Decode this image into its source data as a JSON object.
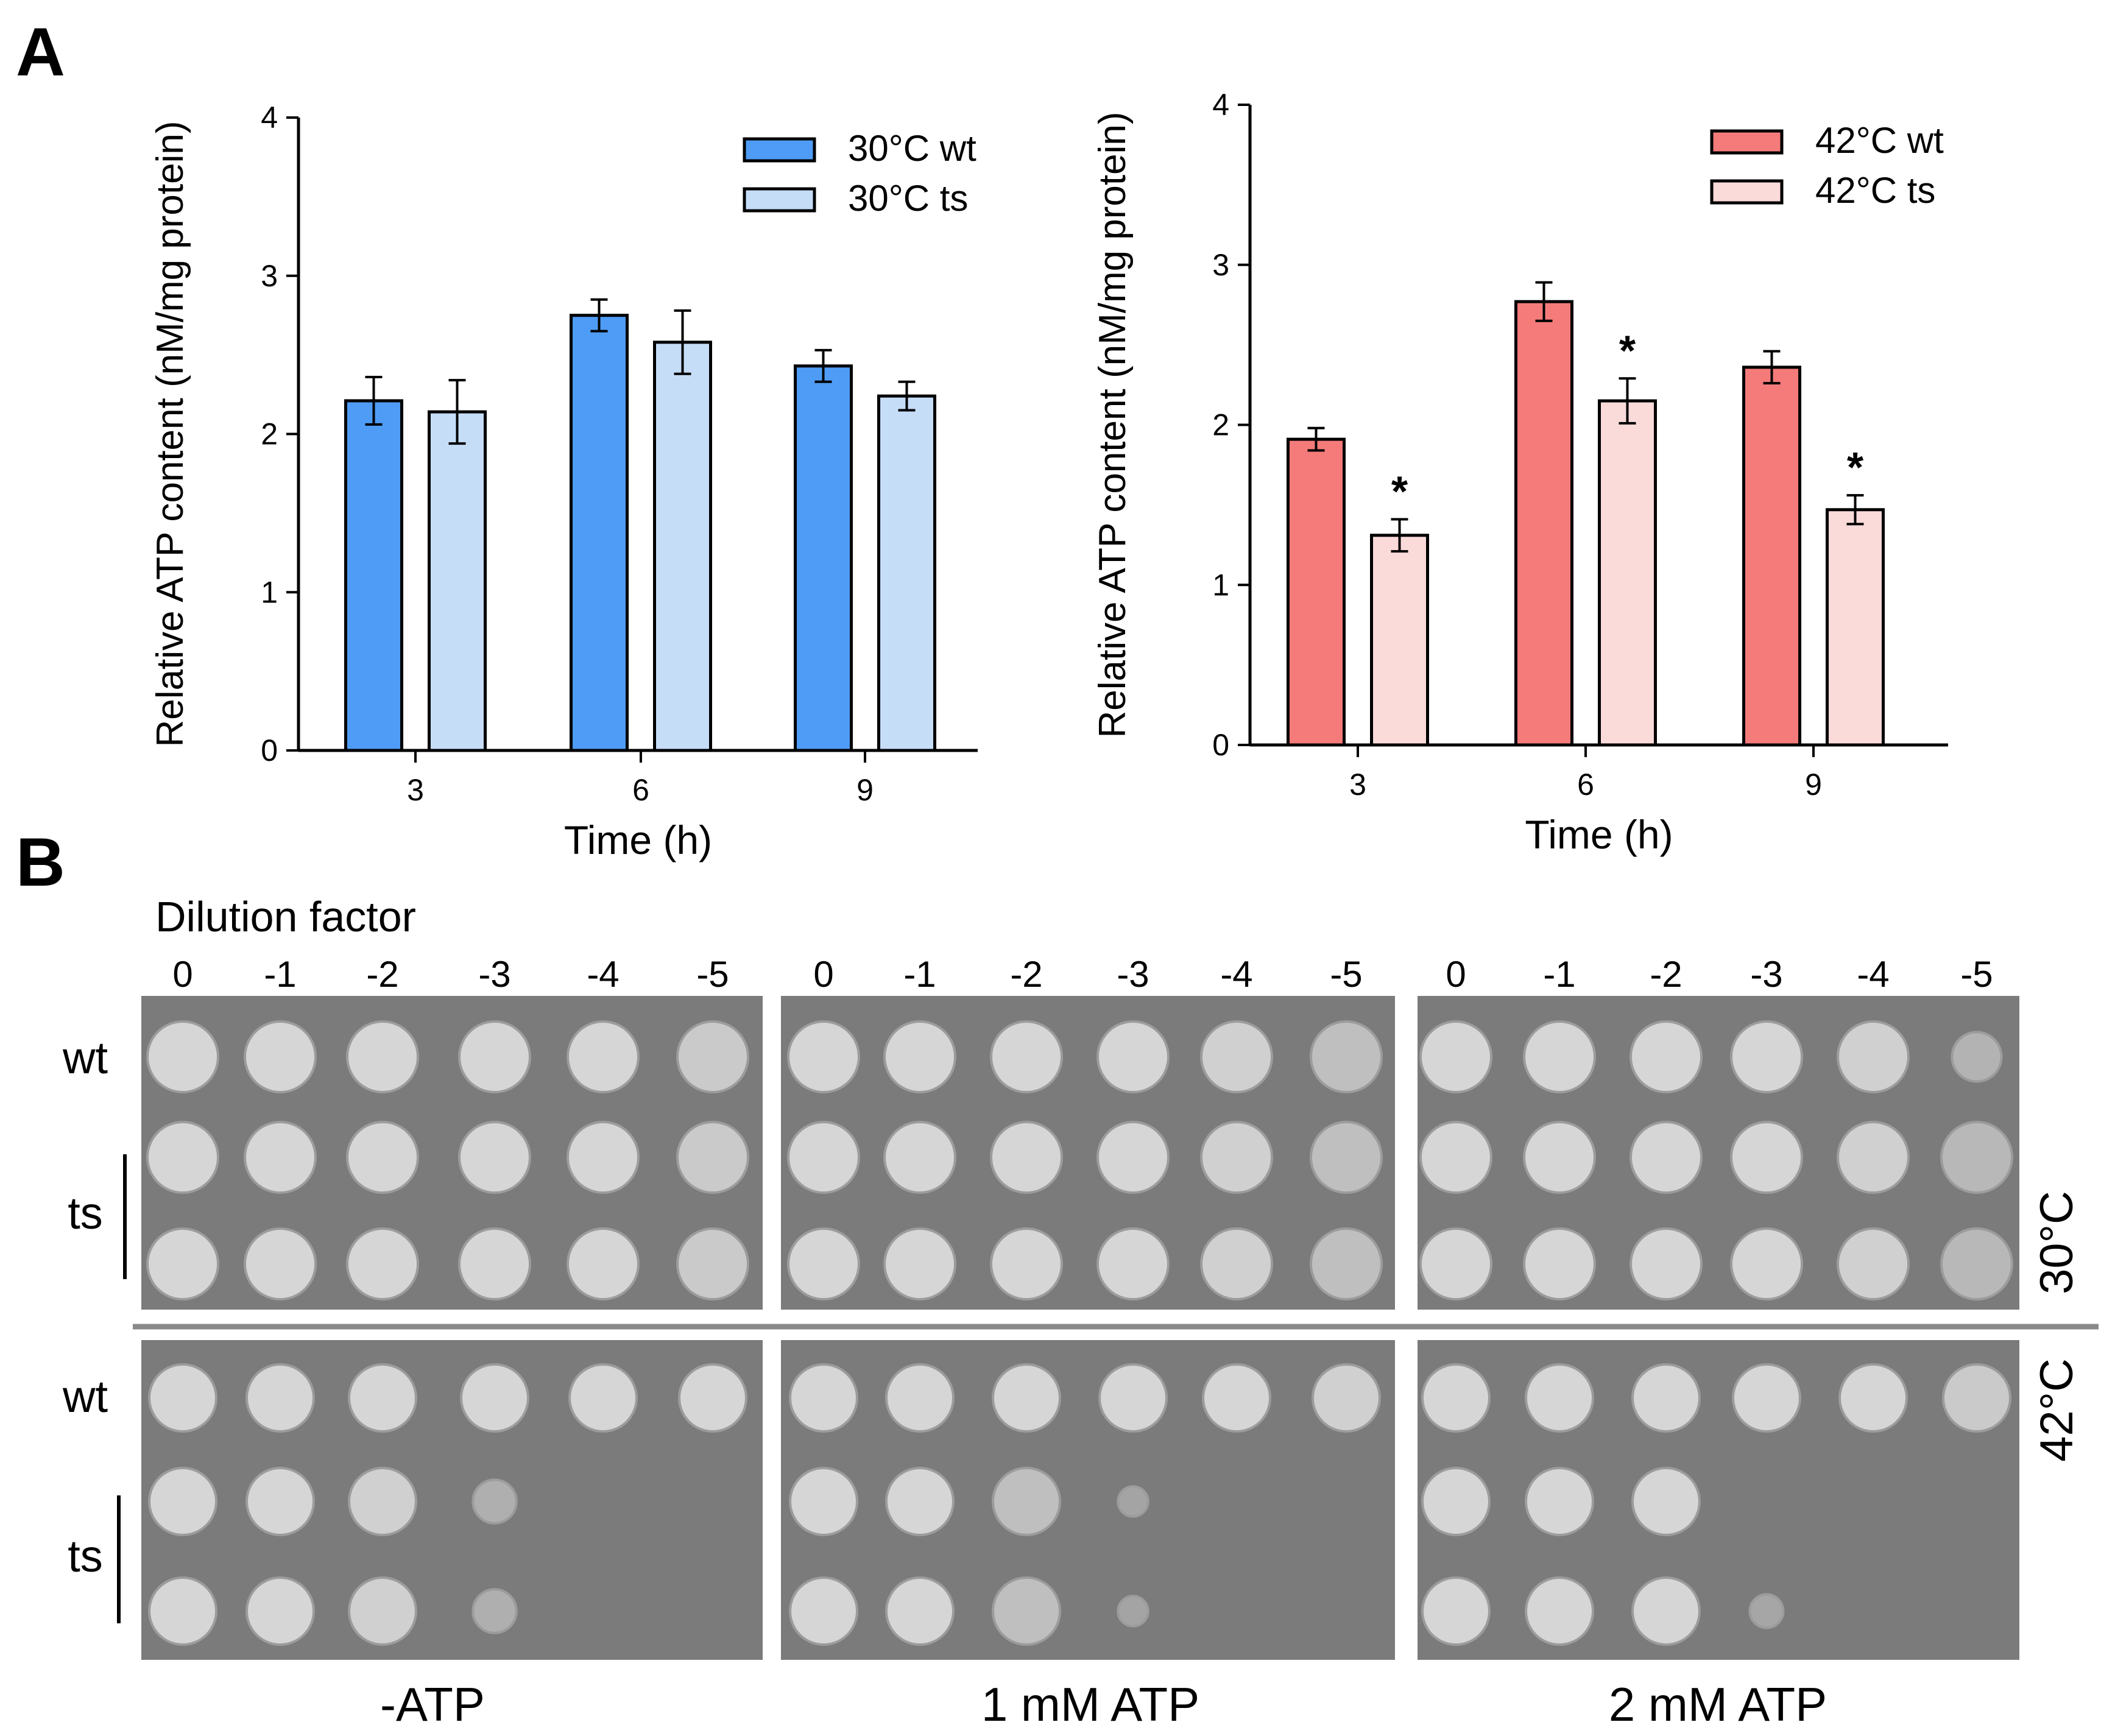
{
  "figure": {
    "panel_a_letter": "A",
    "panel_b_letter": "B"
  },
  "chart_data": [
    {
      "type": "bar",
      "categories": [
        "3",
        "6",
        "9"
      ],
      "series": [
        {
          "name": "30°C wt",
          "color": "#4e9cf5",
          "values": [
            2.21,
            2.75,
            2.43
          ],
          "errors": [
            0.15,
            0.1,
            0.1
          ],
          "significant": [
            false,
            false,
            false
          ]
        },
        {
          "name": "30°C ts",
          "color": "#c6ddf8",
          "values": [
            2.14,
            2.58,
            2.24
          ],
          "errors": [
            0.2,
            0.2,
            0.09
          ],
          "significant": [
            false,
            false,
            false
          ]
        }
      ],
      "title": "",
      "xlabel": "Time (h)",
      "ylabel": "Relative ATP content (nM/mg protein)",
      "ylim": [
        0,
        4
      ],
      "yticks": [
        "0",
        "1",
        "2",
        "3",
        "4"
      ],
      "legend_position": "top-right",
      "significance_marker": "*"
    },
    {
      "type": "bar",
      "categories": [
        "3",
        "6",
        "9"
      ],
      "series": [
        {
          "name": "42°C wt",
          "color": "#f57b7b",
          "values": [
            1.91,
            2.77,
            2.36
          ],
          "errors": [
            0.07,
            0.12,
            0.1
          ],
          "significant": [
            false,
            false,
            false
          ]
        },
        {
          "name": "42°C ts",
          "color": "#fbdada",
          "values": [
            1.31,
            2.15,
            1.47
          ],
          "errors": [
            0.1,
            0.14,
            0.09
          ],
          "significant": [
            true,
            true,
            true
          ]
        }
      ],
      "title": "",
      "xlabel": "Time (h)",
      "ylabel": "Relative ATP content (nM/mg protein)",
      "ylim": [
        0,
        4
      ],
      "yticks": [
        "0",
        "1",
        "2",
        "3",
        "4"
      ],
      "legend_position": "top-right",
      "significance_marker": "*"
    }
  ],
  "spot_assay": {
    "dilution_title": "Dilution factor",
    "dilutions": [
      "0",
      "-1",
      "-2",
      "-3",
      "-4",
      "-5"
    ],
    "conditions": [
      "-ATP",
      "1 mM ATP",
      "2 mM ATP"
    ],
    "row_labels": {
      "wt": "wt",
      "ts": "ts"
    },
    "temperatures": [
      "30°C",
      "42°C"
    ],
    "plate_colors": {
      "background": "#7b7b7b",
      "colony": "#d6d6d6",
      "colony_edge": "#9c9c9c"
    },
    "growth": {
      "30°C": [
        [
          [
            1,
            1,
            1,
            1,
            1,
            0.8
          ],
          [
            1,
            1,
            1,
            1,
            1,
            0.8
          ],
          [
            1,
            1,
            1,
            1,
            1,
            0.8
          ]
        ],
        [
          [
            1,
            1,
            1,
            1,
            0.9,
            0.6
          ],
          [
            1,
            1,
            1,
            1,
            0.9,
            0.6
          ],
          [
            1,
            1,
            1,
            1,
            0.9,
            0.6
          ]
        ],
        [
          [
            1,
            1,
            1,
            1,
            0.9,
            0.4
          ],
          [
            1,
            1,
            1,
            1,
            0.9,
            0.5
          ],
          [
            1,
            1,
            1,
            1,
            0.9,
            0.5
          ]
        ]
      ],
      "42°C": [
        [
          [
            1,
            1,
            1,
            1,
            1,
            1
          ],
          [
            1,
            1,
            0.9,
            0.35,
            0,
            0
          ],
          [
            1,
            1,
            0.9,
            0.35,
            0,
            0
          ]
        ],
        [
          [
            1,
            1,
            1,
            1,
            1,
            0.9
          ],
          [
            1,
            1,
            0.6,
            0.15,
            0,
            0
          ],
          [
            1,
            1,
            0.6,
            0.15,
            0,
            0
          ]
        ],
        [
          [
            1,
            1,
            1,
            1,
            1,
            0.8
          ],
          [
            1,
            1,
            1,
            0,
            0,
            0
          ],
          [
            1,
            1,
            1,
            0.2,
            0,
            0
          ]
        ]
      ]
    }
  }
}
